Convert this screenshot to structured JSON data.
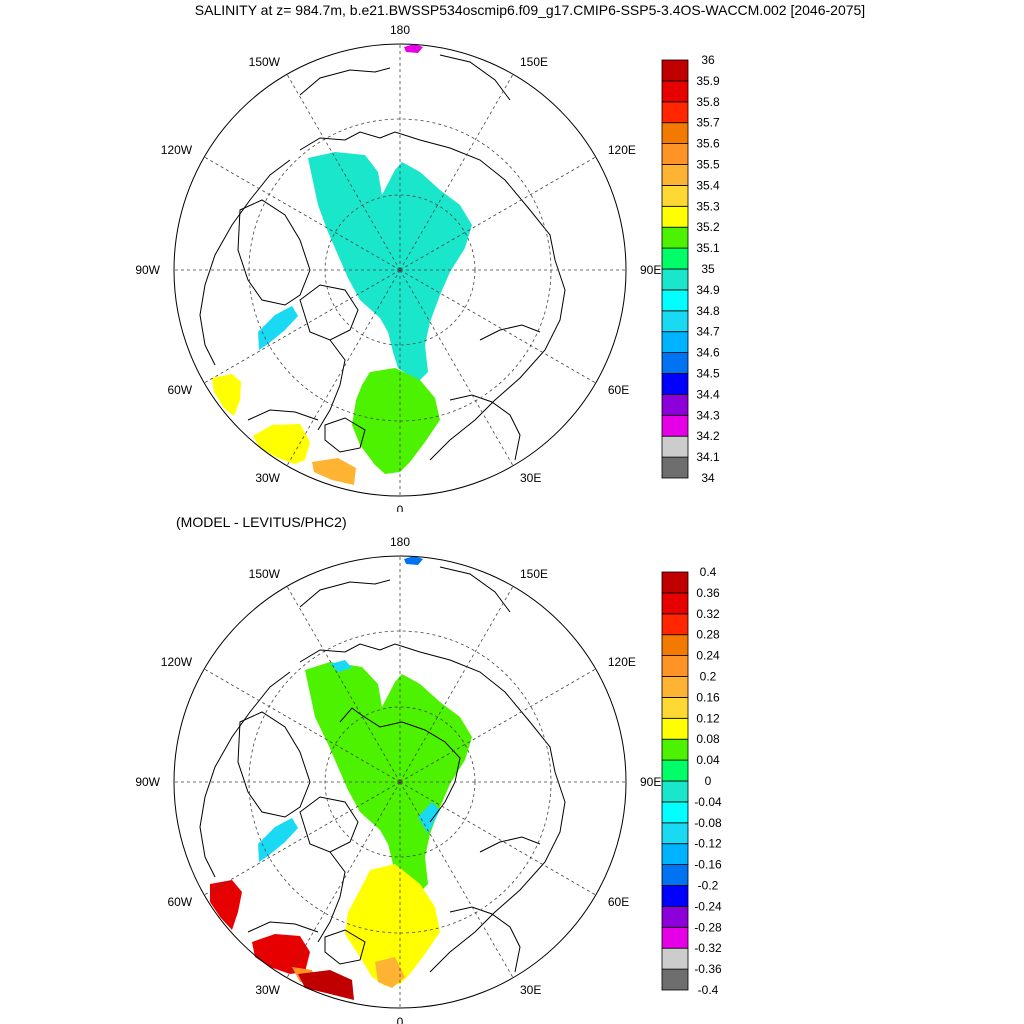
{
  "title": "SALINITY at z= 984.7m, b.e21.BWSSP534oscmip6.f09_g17.CMIP6-SSP5-3.4OS-WACCM.002 [2046-2075]",
  "subtitle": "(MODEL - LEVITUS/PHC2)",
  "longitude_labels": [
    "180",
    "150E",
    "120E",
    "90E",
    "60E",
    "30E",
    "0",
    "30W",
    "60W",
    "90W",
    "120W",
    "150W"
  ],
  "colors": [
    "#6e6e6e",
    "#cccccc",
    "#e600e6",
    "#8c00d9",
    "#0000ff",
    "#0073f2",
    "#00b3ff",
    "#1ad9f2",
    "#00ffff",
    "#1ae6cc",
    "#00ff66",
    "#4df200",
    "#ffff00",
    "#ffd933",
    "#ffb333",
    "#ff9426",
    "#f27a00",
    "#ff2600",
    "#e60000",
    "#c00000"
  ],
  "panels": [
    {
      "name": "salinity",
      "colorbar_labels": [
        "36",
        "35.9",
        "35.8",
        "35.7",
        "35.6",
        "35.5",
        "35.4",
        "35.3",
        "35.2",
        "35.1",
        "35",
        "34.9",
        "34.8",
        "34.7",
        "34.6",
        "34.5",
        "34.4",
        "34.3",
        "34.2",
        "34.1",
        "34"
      ]
    },
    {
      "name": "anomaly",
      "colorbar_labels": [
        "0.4",
        "0.36",
        "0.32",
        "0.28",
        "0.24",
        "0.2",
        "0.16",
        "0.12",
        "0.08",
        "0.04",
        "0",
        "-0.04",
        "-0.08",
        "-0.12",
        "-0.16",
        "-0.2",
        "-0.24",
        "-0.28",
        "-0.32",
        "-0.36",
        "-0.4"
      ]
    }
  ]
}
